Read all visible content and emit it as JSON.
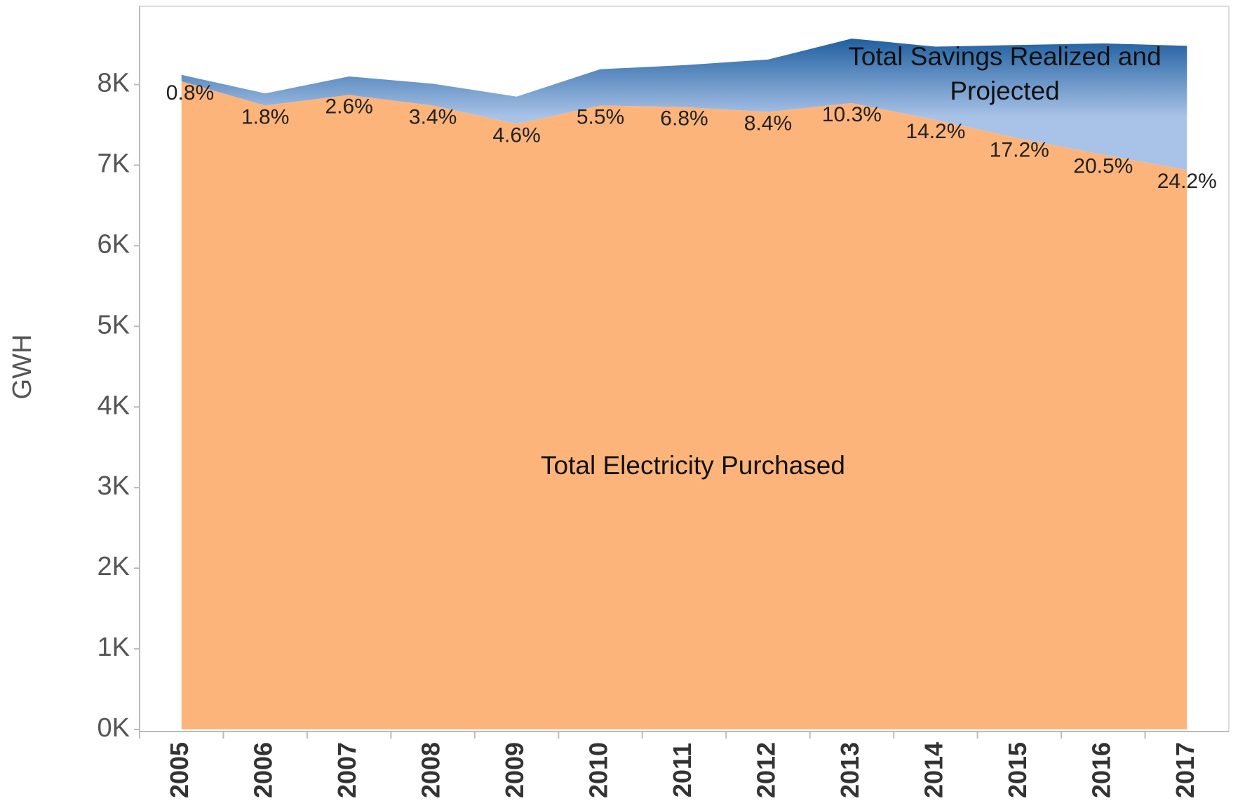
{
  "chart_data": {
    "type": "stacked_area",
    "y_label": "GWH",
    "categories": [
      "2005",
      "2006",
      "2007",
      "2008",
      "2009",
      "2010",
      "2011",
      "2012",
      "2013",
      "2014",
      "2015",
      "2016",
      "2017"
    ],
    "series": [
      {
        "name": "Total Electricity Purchased",
        "color": "#fdb47b",
        "values": [
          8040,
          7740,
          7870,
          7740,
          7510,
          7740,
          7720,
          7660,
          7770,
          7560,
          7330,
          7130,
          6940
        ]
      },
      {
        "name": "Total Savings Realized and Projected",
        "color": "#1f5fa0",
        "color_light": "#a9c3e8",
        "values": [
          80,
          150,
          230,
          270,
          340,
          450,
          520,
          650,
          800,
          910,
          1160,
          1380,
          1540
        ]
      }
    ],
    "annotations": [
      "0.8%",
      "1.8%",
      "2.6%",
      "3.4%",
      "4.6%",
      "5.5%",
      "6.8%",
      "8.4%",
      "10.3%",
      "14.2%",
      "17.2%",
      "20.5%",
      "24.2%"
    ],
    "ylim": [
      0,
      8970
    ],
    "yticks": [
      {
        "value": 0,
        "label": "0K"
      },
      {
        "value": 1000,
        "label": "1K"
      },
      {
        "value": 2000,
        "label": "2K"
      },
      {
        "value": 3000,
        "label": "3K"
      },
      {
        "value": 4000,
        "label": "4K"
      },
      {
        "value": 5000,
        "label": "5K"
      },
      {
        "value": 6000,
        "label": "6K"
      },
      {
        "value": 7000,
        "label": "7K"
      },
      {
        "value": 8000,
        "label": "8K"
      }
    ]
  }
}
